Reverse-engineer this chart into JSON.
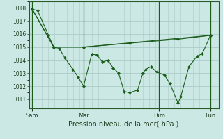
{
  "xlabel": "Pression niveau de la mer( hPa )",
  "background_color": "#cce8e4",
  "grid_major_color": "#aaccc8",
  "grid_minor_color": "#bcdcd8",
  "line_color": "#1a5c1a",
  "ylim": [
    1010.3,
    1018.5
  ],
  "yticks": [
    1011,
    1012,
    1013,
    1014,
    1015,
    1016,
    1017,
    1018
  ],
  "series1_x": [
    0,
    0.33,
    1.0,
    1.33,
    1.67,
    2.0,
    2.5,
    2.83,
    3.17,
    3.67,
    4.0,
    4.33,
    4.67,
    5.0,
    5.33,
    5.67,
    6.0,
    6.5,
    6.83,
    7.0,
    7.33,
    7.67,
    8.17,
    8.5,
    9.0,
    9.17,
    9.67,
    10.17,
    10.5,
    11.0
  ],
  "series1_y": [
    1017.9,
    1017.8,
    1015.9,
    1015.0,
    1014.9,
    1014.2,
    1013.3,
    1012.7,
    1012.0,
    1014.45,
    1014.4,
    1013.85,
    1014.0,
    1013.4,
    1013.0,
    1011.6,
    1011.5,
    1011.7,
    1013.0,
    1013.3,
    1013.5,
    1013.1,
    1012.85,
    1012.2,
    1010.7,
    1011.2,
    1013.5,
    1014.3,
    1014.5,
    1015.9
  ],
  "series2_x": [
    0,
    1.33,
    3.17,
    6.0,
    9.0,
    11.0
  ],
  "series2_y": [
    1017.9,
    1015.0,
    1015.0,
    1015.3,
    1015.6,
    1015.9
  ],
  "series3_x": [
    0,
    1.33,
    3.17,
    11.0
  ],
  "series3_y": [
    1017.9,
    1015.0,
    1015.0,
    1015.9
  ],
  "vline_x": [
    0,
    3.17,
    7.83,
    11.0
  ],
  "xtick_x": [
    0,
    3.17,
    7.83,
    11.0
  ],
  "xtick_labels": [
    "Sam",
    "Mar",
    "Dim",
    "Lun"
  ],
  "xlim": [
    -0.2,
    11.5
  ],
  "font_size_ytick": 5.5,
  "font_size_xtick": 6,
  "font_size_xlabel": 7
}
